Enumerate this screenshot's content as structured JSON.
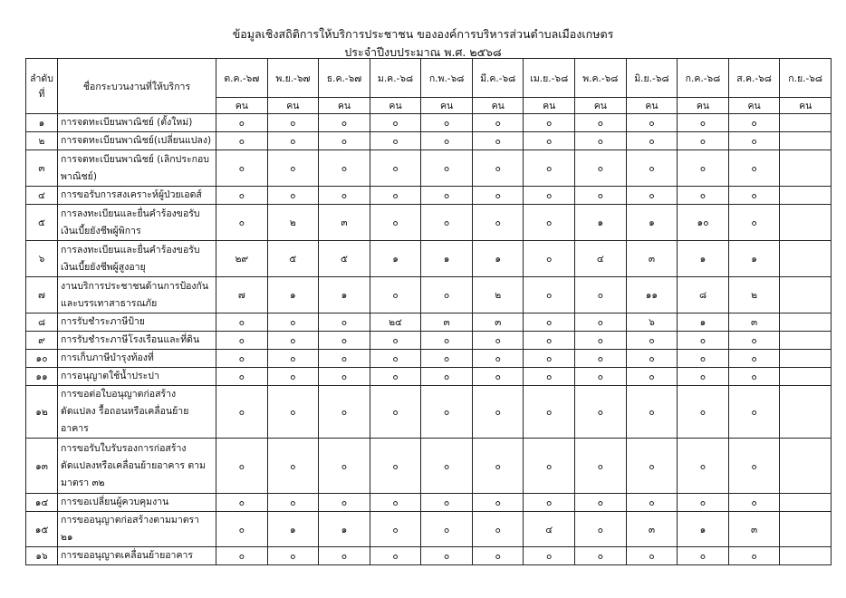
{
  "title": "ข้อมูลเชิงสถิติการให้บริการประชาชน ขององค์การบริหารส่วนตำบลเมืองเกษตร",
  "subtitle": "ประจำปีงบประมาณ พ.ศ. ๒๕๖๘",
  "headers": {
    "no": "ลำดับที่",
    "name": "ชื่อกระบวนงานที่ให้บริการ",
    "months": [
      "ต.ค.-๖๗",
      "พ.ย.-๖๗",
      "ธ.ค.-๖๗",
      "ม.ค.-๖๘",
      "ก.พ.-๖๘",
      "มี.ค.-๖๘",
      "เม.ย.-๖๘",
      "พ.ค.-๖๘",
      "มิ.ย.-๖๘",
      "ก.ค.-๖๘",
      "ส.ค.-๖๘",
      "ก.ย.-๖๘"
    ],
    "unit": "คน"
  },
  "rows": [
    {
      "no": "๑",
      "name": "การจดทะเบียนพาณิชย์ (ตั้งใหม่)",
      "h": 1,
      "values": [
        "๐",
        "๐",
        "๐",
        "๐",
        "๐",
        "๐",
        "๐",
        "๐",
        "๐",
        "๐",
        "๐",
        ""
      ]
    },
    {
      "no": "๒",
      "name": "การจดทะเบียนพาณิชย์(เปลี่ยนแปลง)",
      "h": 1,
      "values": [
        "๐",
        "๐",
        "๐",
        "๐",
        "๐",
        "๐",
        "๐",
        "๐",
        "๐",
        "๐",
        "๐",
        ""
      ]
    },
    {
      "no": "๓",
      "name": "การจดทะเบียนพาณิชย์ (เลิกประกอบพาณิชย์)",
      "h": 2,
      "values": [
        "๐",
        "๐",
        "๐",
        "๐",
        "๐",
        "๐",
        "๐",
        "๐",
        "๐",
        "๐",
        "๐",
        ""
      ]
    },
    {
      "no": "๔",
      "name": "การขอรับการสงเคราะห์ผู้ป่วยเอดส์",
      "h": 1,
      "values": [
        "๐",
        "๐",
        "๐",
        "๐",
        "๐",
        "๐",
        "๐",
        "๐",
        "๐",
        "๐",
        "๐",
        ""
      ]
    },
    {
      "no": "๕",
      "name": "การลงทะเบียนและยื่นคำร้องขอรับเงินเบี้ยยังชีพผู้พิการ",
      "h": 2,
      "values": [
        "๐",
        "๒",
        "๓",
        "๐",
        "๐",
        "๐",
        "๐",
        "๑",
        "๑",
        "๑๐",
        "๐",
        ""
      ]
    },
    {
      "no": "๖",
      "name": "การลงทะเบียนและยื่นคำร้องขอรับเงินเบี้ยยังชีพผู้สูงอายุ",
      "h": 2,
      "values": [
        "๒๙",
        "๕",
        "๕",
        "๑",
        "๑",
        "๑",
        "๐",
        "๔",
        "๓",
        "๑",
        "๑",
        ""
      ]
    },
    {
      "no": "๗",
      "name": "งานบริการประชาชนด้านการป้องกันและบรรเทาสาธารณภัย",
      "h": 2,
      "values": [
        "๗",
        "๑",
        "๑",
        "๐",
        "๐",
        "๒",
        "๐",
        "๐",
        "๑๑",
        "๘",
        "๒",
        ""
      ]
    },
    {
      "no": "๘",
      "name": "การรับชำระภาษีป้าย",
      "h": 1,
      "values": [
        "๐",
        "๐",
        "๐",
        "๒๔",
        "๓",
        "๓",
        "๐",
        "๐",
        "๖",
        "๑",
        "๓",
        ""
      ]
    },
    {
      "no": "๙",
      "name": "การรับชำระภาษีโรงเรือนและที่ดิน",
      "h": 1,
      "values": [
        "๐",
        "๐",
        "๐",
        "๐",
        "๐",
        "๐",
        "๐",
        "๐",
        "๐",
        "๐",
        "๐",
        ""
      ]
    },
    {
      "no": "๑๐",
      "name": "การเก็บภาษีบำรุงท้องที่",
      "h": 1,
      "values": [
        "๐",
        "๐",
        "๐",
        "๐",
        "๐",
        "๐",
        "๐",
        "๐",
        "๐",
        "๐",
        "๐",
        ""
      ]
    },
    {
      "no": "๑๑",
      "name": "การอนุญาตใช้น้ำประปา",
      "h": 1,
      "values": [
        "๐",
        "๐",
        "๐",
        "๐",
        "๐",
        "๐",
        "๐",
        "๐",
        "๐",
        "๐",
        "๐",
        ""
      ]
    },
    {
      "no": "๑๒",
      "name": "การขอต่อใบอนุญาตก่อสร้าง ดัดแปลง รื้อถอนหรือเคลื่อนย้ายอาคาร",
      "h": 2,
      "values": [
        "๐",
        "๐",
        "๐",
        "๐",
        "๐",
        "๐",
        "๐",
        "๐",
        "๐",
        "๐",
        "๐",
        ""
      ]
    },
    {
      "no": "๑๓",
      "name": "การขอรับใบรับรองการก่อสร้าง ดัดแปลงหรือเคลื่อนย้ายอาคาร ตามมาตรา ๓๒",
      "h": 3,
      "values": [
        "๐",
        "๐",
        "๐",
        "๐",
        "๐",
        "๐",
        "๐",
        "๐",
        "๐",
        "๐",
        "๐",
        ""
      ]
    },
    {
      "no": "๑๔",
      "name": "การขอเปลี่ยนผู้ควบคุมงาน",
      "h": 1,
      "values": [
        "๐",
        "๐",
        "๐",
        "๐",
        "๐",
        "๐",
        "๐",
        "๐",
        "๐",
        "๐",
        "๐",
        ""
      ]
    },
    {
      "no": "๑๕",
      "name": "การขออนุญาตก่อสร้างตามมาตรา ๒๑",
      "h": 1,
      "values": [
        "๐",
        "๑",
        "๑",
        "๐",
        "๐",
        "๐",
        "๔",
        "๐",
        "๓",
        "๑",
        "๓",
        ""
      ]
    },
    {
      "no": "๑๖",
      "name": "การขออนุญาตเคลื่อนย้ายอาคาร",
      "h": 1,
      "values": [
        "๐",
        "๐",
        "๐",
        "๐",
        "๐",
        "๐",
        "๐",
        "๐",
        "๐",
        "๐",
        "๐",
        ""
      ]
    }
  ]
}
